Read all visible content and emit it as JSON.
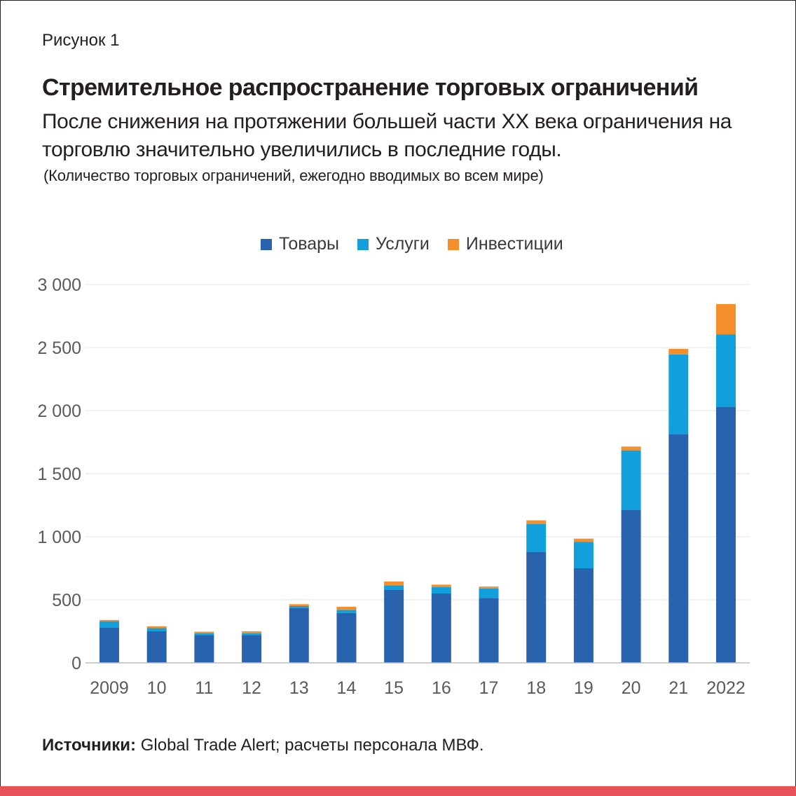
{
  "figure_label": "Рисунок 1",
  "title": "Стремительное распространение торговых ограничений",
  "subtitle": "После снижения на протяжении большей части XX века ограничения на торговлю значительно увеличились в последние годы.",
  "unit_note": "(Количество торговых ограничений, ежегодно вводимых во всем мире)",
  "source": {
    "label": "Источники:",
    "text": " Global Trade Alert; расчеты персонала МВФ."
  },
  "chart_data": {
    "type": "bar",
    "stacked": true,
    "categories": [
      "2009",
      "10",
      "11",
      "12",
      "13",
      "14",
      "15",
      "16",
      "17",
      "18",
      "19",
      "20",
      "21",
      "2022"
    ],
    "series": [
      {
        "name": "Товары",
        "color": "#2a63ad",
        "values": [
          280,
          250,
          220,
          220,
          435,
          395,
          580,
          550,
          515,
          880,
          750,
          1215,
          1815,
          2030
        ]
      },
      {
        "name": "Услуги",
        "color": "#12a0dc",
        "values": [
          50,
          25,
          15,
          15,
          15,
          25,
          35,
          50,
          75,
          220,
          210,
          470,
          630,
          575
        ]
      },
      {
        "name": "Инвестиции",
        "color": "#f58f2c",
        "values": [
          10,
          15,
          12,
          15,
          15,
          25,
          30,
          20,
          15,
          30,
          25,
          30,
          45,
          240
        ]
      }
    ],
    "yticks": [
      "0",
      "500",
      "1 000",
      "1 500",
      "2 000",
      "2 500",
      "3 000"
    ],
    "ylim": [
      0,
      3000
    ],
    "grid": true,
    "legend_position": "top"
  }
}
